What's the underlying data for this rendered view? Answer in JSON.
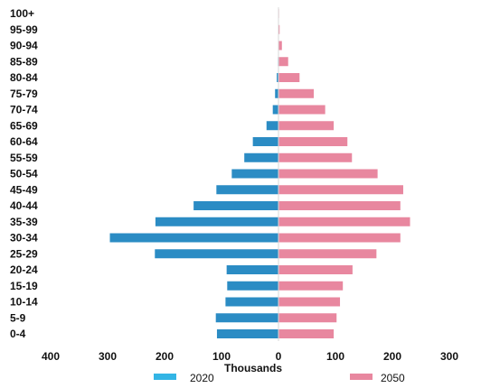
{
  "chart_data": {
    "type": "bar",
    "orientation": "horizontal-population-pyramid",
    "categories": [
      "0-4",
      "5-9",
      "10-14",
      "15-19",
      "20-24",
      "25-29",
      "30-34",
      "35-39",
      "40-44",
      "45-49",
      "50-54",
      "55-59",
      "60-64",
      "65-69",
      "70-74",
      "75-79",
      "80-84",
      "85-89",
      "90-94",
      "95-99",
      "100+"
    ],
    "series": [
      {
        "name": "2020",
        "color": "#2b8cc4",
        "legend_color": "#33b5e5",
        "side": "left",
        "values": [
          108,
          110,
          93,
          90,
          91,
          217,
          296,
          216,
          149,
          109,
          82,
          60,
          45,
          21,
          10,
          6,
          3,
          1,
          0.5,
          0.2,
          0.1
        ]
      },
      {
        "name": "2050",
        "color": "#e8879f",
        "legend_color": "#e8879f",
        "side": "right",
        "values": [
          97,
          102,
          108,
          113,
          130,
          172,
          214,
          231,
          214,
          219,
          174,
          129,
          121,
          97,
          82,
          62,
          37,
          17,
          6,
          2,
          1
        ]
      }
    ],
    "xlabel": "Thousands",
    "xticks": [
      {
        "value": -400,
        "label": "400"
      },
      {
        "value": -300,
        "label": "300"
      },
      {
        "value": -200,
        "label": "200"
      },
      {
        "value": -100,
        "label": "100"
      },
      {
        "value": 0,
        "label": "0"
      },
      {
        "value": 100,
        "label": "100"
      },
      {
        "value": 200,
        "label": "200"
      },
      {
        "value": 300,
        "label": "300"
      }
    ],
    "xlim": [
      -400,
      300
    ],
    "grid": false,
    "legend": "bottom"
  }
}
